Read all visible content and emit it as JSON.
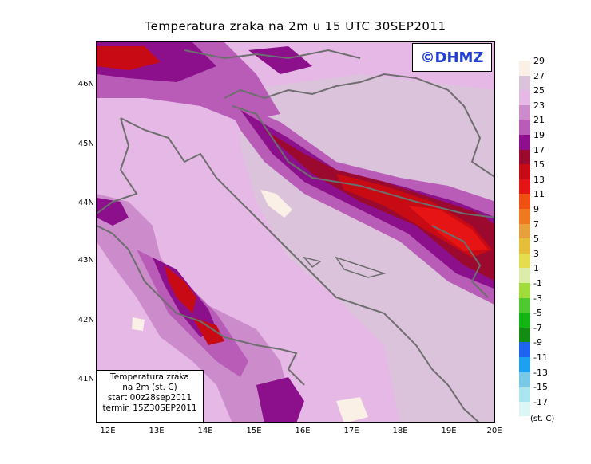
{
  "title": "Temperatura zraka na 2m u 15 UTC 30SEP2011",
  "logo_text": "©DHMZ",
  "infobox": {
    "line1": "Temperatura zraka",
    "line2": "na 2m (st. C)",
    "line3": "start 00z28sep2011",
    "line4": "termin 15Z30SEP2011"
  },
  "lat_labels": [
    "46N",
    "45N",
    "44N",
    "43N",
    "42N",
    "41N"
  ],
  "lon_labels": [
    "12E",
    "13E",
    "14E",
    "15E",
    "16E",
    "17E",
    "18E",
    "19E",
    "20E"
  ],
  "legend": {
    "unit": "(st. C)",
    "labels": [
      "29",
      "27",
      "25",
      "23",
      "21",
      "19",
      "17",
      "15",
      "13",
      "11",
      "9",
      "7",
      "5",
      "3",
      "1",
      "-1",
      "-3",
      "-5",
      "-7",
      "-9",
      "-11",
      "-13",
      "-15",
      "-17"
    ],
    "colors": [
      "#fbf0e6",
      "#dcc3dc",
      "#e6b8e6",
      "#cc8ccc",
      "#b85cb8",
      "#8c0f8c",
      "#9b0a2e",
      "#c80a14",
      "#e61414",
      "#f05014",
      "#f0781e",
      "#e6a03c",
      "#e6be3c",
      "#e6dc50",
      "#dcecaa",
      "#a0dc3c",
      "#50c832",
      "#14b414",
      "#148c14",
      "#1e64f0",
      "#1ea0f0",
      "#78c8e6",
      "#aae6f0",
      "#dcf5f5"
    ]
  }
}
